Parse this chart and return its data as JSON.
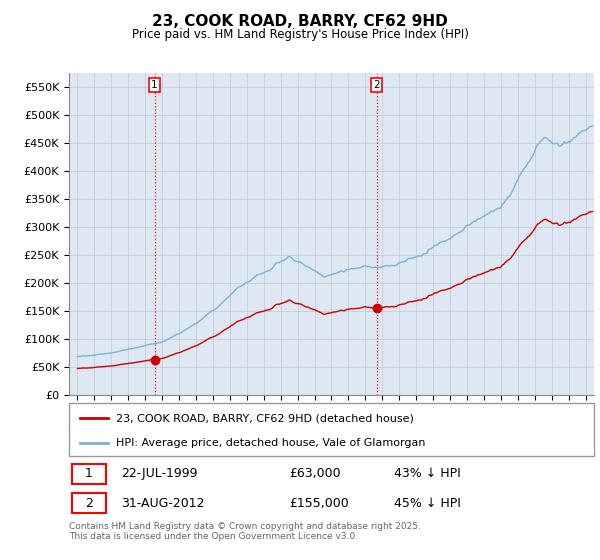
{
  "title": "23, COOK ROAD, BARRY, CF62 9HD",
  "subtitle": "Price paid vs. HM Land Registry's House Price Index (HPI)",
  "sale1_date": "22-JUL-1999",
  "sale1_price": 63000,
  "sale1_label": "43% ↓ HPI",
  "sale2_date": "31-AUG-2012",
  "sale2_price": 155000,
  "sale2_label": "45% ↓ HPI",
  "sale1_year": 1999.55,
  "sale2_year": 2012.67,
  "yticks": [
    0,
    50000,
    100000,
    150000,
    200000,
    250000,
    300000,
    350000,
    400000,
    450000,
    500000,
    550000
  ],
  "ylim": [
    0,
    575000
  ],
  "xlim_start": 1994.5,
  "xlim_end": 2025.5,
  "hpi_color": "#7ab3d4",
  "property_color": "#cc0000",
  "background_color": "#dde8f2",
  "grid_color": "#c0c8d8",
  "legend_label_property": "23, COOK ROAD, BARRY, CF62 9HD (detached house)",
  "legend_label_hpi": "HPI: Average price, detached house, Vale of Glamorgan",
  "footer": "Contains HM Land Registry data © Crown copyright and database right 2025.\nThis data is licensed under the Open Government Licence v3.0."
}
